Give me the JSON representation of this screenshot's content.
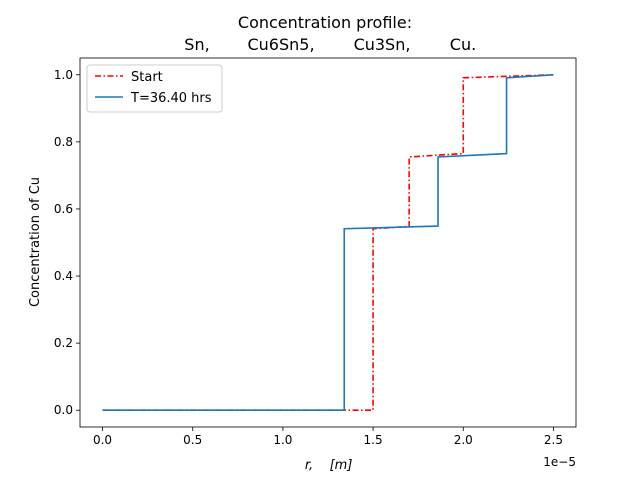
{
  "chart_data": {
    "type": "line",
    "title_line1": "Concentration profile:",
    "title_line2": [
      "Sn,",
      "Cu6Sn5,",
      "Cu3Sn,",
      "Cu."
    ],
    "xlabel_var": "r,",
    "xlabel_unit": "[m]",
    "x_offset_label": "1e−5",
    "ylabel": "Concentration of Cu",
    "xlim": [
      -0.125,
      2.625
    ],
    "ylim": [
      -0.05,
      1.05
    ],
    "x_ticks": [
      0.0,
      0.5,
      1.0,
      1.5,
      2.0,
      2.5
    ],
    "x_tick_labels": [
      "0.0",
      "0.5",
      "1.0",
      "1.5",
      "2.0",
      "2.5"
    ],
    "y_ticks": [
      0.0,
      0.2,
      0.4,
      0.6,
      0.8,
      1.0
    ],
    "y_tick_labels": [
      "0.0",
      "0.2",
      "0.4",
      "0.6",
      "0.8",
      "1.0"
    ],
    "grid": false,
    "legend_position": "top-left",
    "series": [
      {
        "name": "Start",
        "color": "#ff0000",
        "style": "dashdot",
        "x": [
          0.0,
          1.5,
          1.5,
          1.7,
          1.7,
          2.0,
          2.0,
          2.5
        ],
        "y": [
          0.0,
          0.0,
          0.541,
          0.548,
          0.755,
          0.765,
          0.991,
          1.0
        ]
      },
      {
        "name": "T=36.40 hrs",
        "color": "#1f77b4",
        "style": "solid",
        "x": [
          0.0,
          1.34,
          1.34,
          1.86,
          1.86,
          2.24,
          2.24,
          2.5
        ],
        "y": [
          0.0,
          0.0,
          0.541,
          0.549,
          0.755,
          0.765,
          0.991,
          1.0
        ]
      }
    ]
  }
}
